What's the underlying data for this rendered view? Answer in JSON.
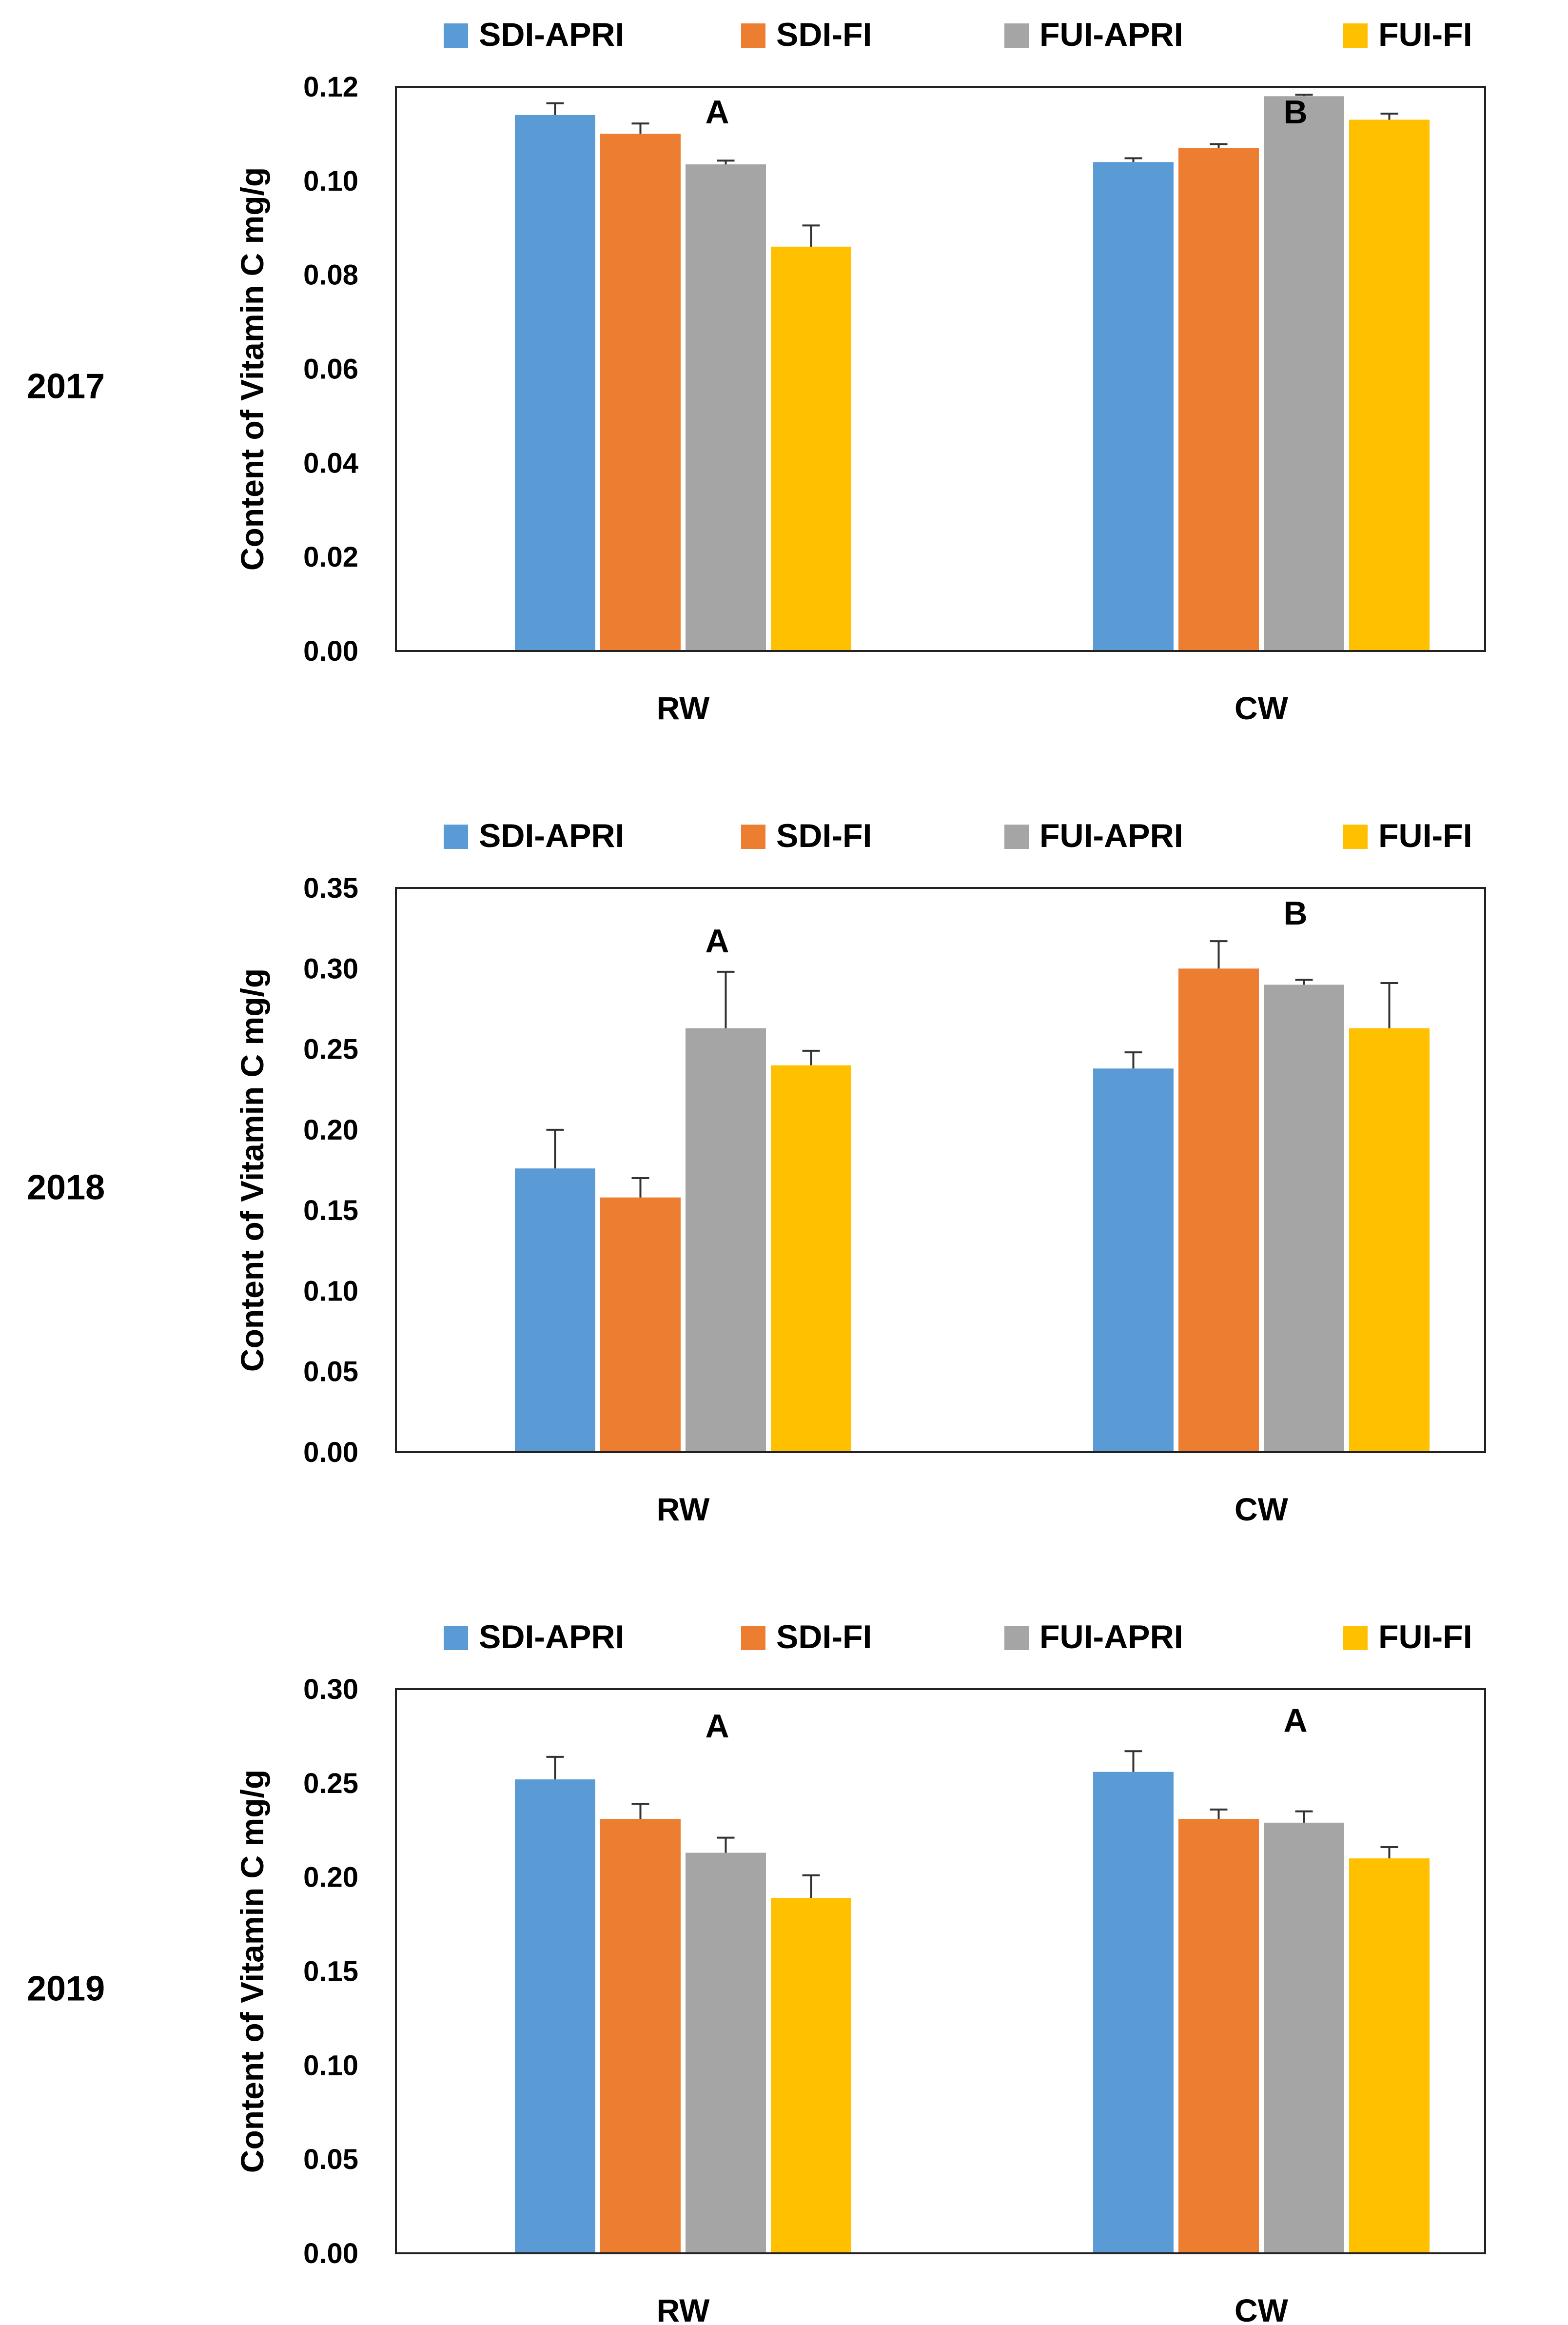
{
  "colors": {
    "SDI-APRI": "#5b9bd5",
    "SDI-FI": "#ed7d31",
    "FUI-APRI": "#a5a5a5",
    "FUI-FI": "#ffc000"
  },
  "chart_data": [
    {
      "type": "bar",
      "panel_label": "2017",
      "categories": [
        "RW",
        "CW"
      ],
      "legend": [
        "SDI-APRI",
        "SDI-FI",
        "FUI-APRI",
        "FUI-FI"
      ],
      "ylabel": "Content of Vitamin C  mg/g",
      "ylim": [
        0,
        0.12
      ],
      "yticks": [
        "0.00",
        "0.02",
        "0.04",
        "0.06",
        "0.08",
        "0.10",
        "0.12"
      ],
      "group_letters": [
        "A",
        "B"
      ],
      "series": [
        {
          "name": "SDI-APRI",
          "values": [
            0.114,
            0.104
          ],
          "errors": [
            0.0025,
            0.0008
          ]
        },
        {
          "name": "SDI-FI",
          "values": [
            0.11,
            0.107
          ],
          "errors": [
            0.0022,
            0.0008
          ]
        },
        {
          "name": "FUI-APRI",
          "values": [
            0.1035,
            0.118
          ],
          "errors": [
            0.0008,
            0.0003
          ]
        },
        {
          "name": "FUI-FI",
          "values": [
            0.086,
            0.113
          ],
          "errors": [
            0.0045,
            0.0013
          ]
        }
      ]
    },
    {
      "type": "bar",
      "panel_label": "2018",
      "categories": [
        "RW",
        "CW"
      ],
      "legend": [
        "SDI-APRI",
        "SDI-FI",
        "FUI-APRI",
        "FUI-FI"
      ],
      "ylabel": "Content of Vitamin C  mg/g",
      "ylim": [
        0,
        0.35
      ],
      "yticks": [
        "0.00",
        "0.05",
        "0.10",
        "0.15",
        "0.20",
        "0.25",
        "0.30",
        "0.35"
      ],
      "group_letters": [
        "A",
        "B"
      ],
      "series": [
        {
          "name": "SDI-APRI",
          "values": [
            0.176,
            0.238
          ],
          "errors": [
            0.024,
            0.01
          ]
        },
        {
          "name": "SDI-FI",
          "values": [
            0.158,
            0.3
          ],
          "errors": [
            0.012,
            0.017
          ]
        },
        {
          "name": "FUI-APRI",
          "values": [
            0.263,
            0.29
          ],
          "errors": [
            0.035,
            0.003
          ]
        },
        {
          "name": "FUI-FI",
          "values": [
            0.24,
            0.263
          ],
          "errors": [
            0.009,
            0.028
          ]
        }
      ]
    },
    {
      "type": "bar",
      "panel_label": "2019",
      "categories": [
        "RW",
        "CW"
      ],
      "legend": [
        "SDI-APRI",
        "SDI-FI",
        "FUI-APRI",
        "FUI-FI"
      ],
      "ylabel": "Content of Vitamin C  mg/g",
      "ylim": [
        0,
        0.3
      ],
      "yticks": [
        "0.00",
        "0.05",
        "0.10",
        "0.15",
        "0.20",
        "0.25",
        "0.30"
      ],
      "group_letters": [
        "A",
        "A"
      ],
      "series": [
        {
          "name": "SDI-APRI",
          "values": [
            0.252,
            0.256
          ],
          "errors": [
            0.012,
            0.011
          ]
        },
        {
          "name": "SDI-FI",
          "values": [
            0.231,
            0.231
          ],
          "errors": [
            0.008,
            0.005
          ]
        },
        {
          "name": "FUI-APRI",
          "values": [
            0.213,
            0.229
          ],
          "errors": [
            0.008,
            0.006
          ]
        },
        {
          "name": "FUI-FI",
          "values": [
            0.189,
            0.21
          ],
          "errors": [
            0.012,
            0.006
          ]
        }
      ]
    }
  ]
}
